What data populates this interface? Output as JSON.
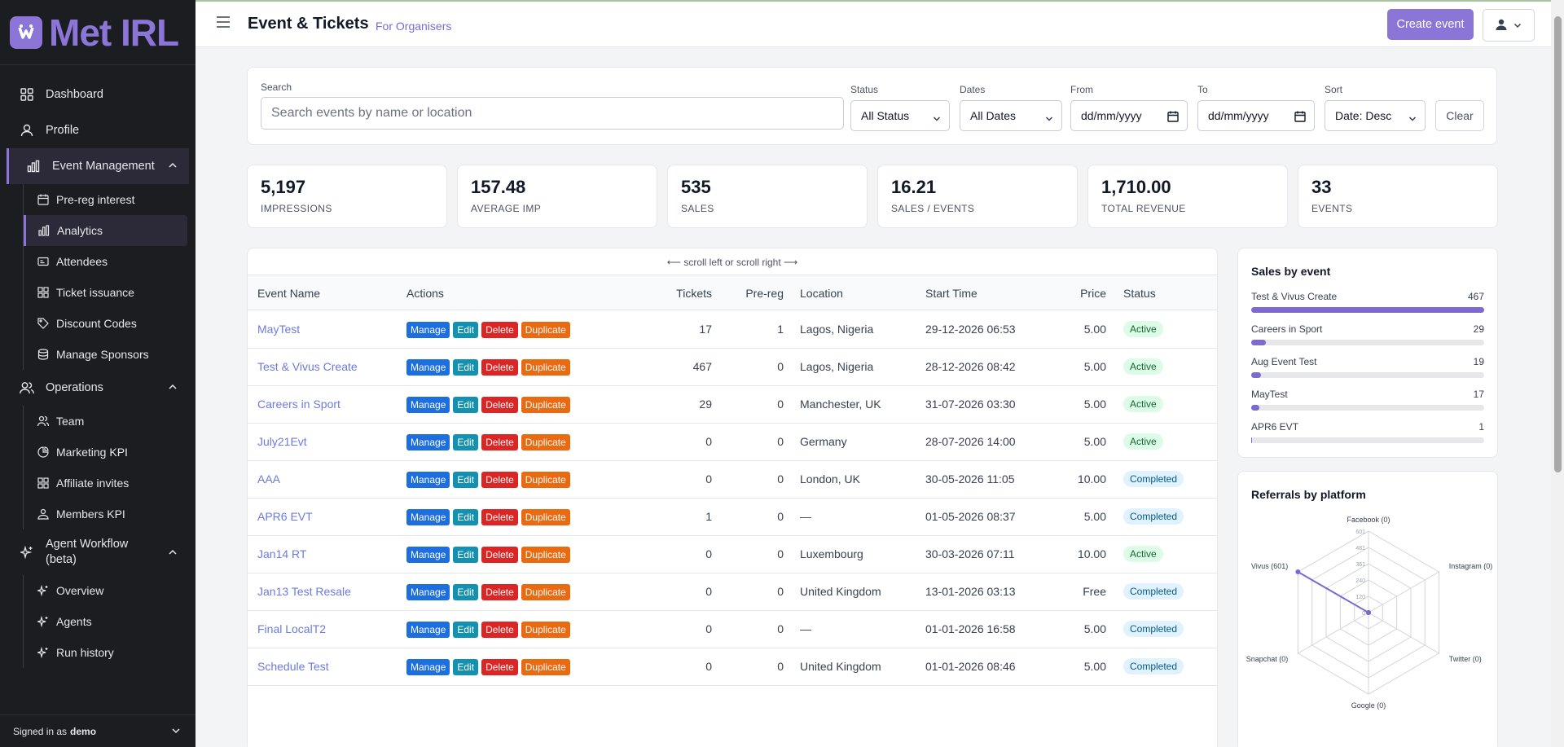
{
  "brand": {
    "name": "Met IRL",
    "color": "#8b75d7"
  },
  "sidebar": {
    "items": [
      {
        "label": "Dashboard",
        "icon": "grid-icon"
      },
      {
        "label": "Profile",
        "icon": "user-icon"
      },
      {
        "label": "Event Management",
        "icon": "bar-chart-icon",
        "expanded": true,
        "children": [
          {
            "label": "Pre-reg interest",
            "icon": "calendar-icon"
          },
          {
            "label": "Analytics",
            "icon": "analytics-icon",
            "active": true
          },
          {
            "label": "Attendees",
            "icon": "id-card-icon"
          },
          {
            "label": "Ticket issuance",
            "icon": "grid-icon"
          },
          {
            "label": "Discount Codes",
            "icon": "tag-icon"
          },
          {
            "label": "Manage Sponsors",
            "icon": "database-icon"
          }
        ]
      },
      {
        "label": "Operations",
        "icon": "users-icon",
        "children": [
          {
            "label": "Team",
            "icon": "team-icon"
          },
          {
            "label": "Marketing KPI",
            "icon": "chart-pie-icon"
          },
          {
            "label": "Affiliate invites",
            "icon": "grid-icon"
          },
          {
            "label": "Members KPI",
            "icon": "members-icon"
          }
        ]
      },
      {
        "label": "Agent Workflow (beta)",
        "label_line1": "Agent Workflow",
        "label_line2": "(beta)",
        "icon": "sparkle-icon",
        "children": [
          {
            "label": "Overview",
            "icon": "sparkle-icon"
          },
          {
            "label": "Agents",
            "icon": "sparkle-icon"
          },
          {
            "label": "Run history",
            "icon": "sparkle-icon"
          }
        ]
      }
    ],
    "signed_in_prefix": "Signed in as",
    "signed_in_user": "demo"
  },
  "header": {
    "title": "Event & Tickets",
    "subtitle": "For Organisers",
    "create_button": "Create event"
  },
  "filters": {
    "search_label": "Search",
    "search_placeholder": "Search events by name or location",
    "status_label": "Status",
    "status_value": "All Status",
    "dates_label": "Dates",
    "dates_value": "All Dates",
    "from_label": "From",
    "from_value": "dd/mm/yyyy",
    "to_label": "To",
    "to_value": "dd/mm/yyyy",
    "sort_label": "Sort",
    "sort_value": "Date: Desc",
    "clear_button": "Clear"
  },
  "stats": [
    {
      "value": "5,197",
      "label": "IMPRESSIONS"
    },
    {
      "value": "157.48",
      "label": "AVERAGE IMP"
    },
    {
      "value": "535",
      "label": "SALES"
    },
    {
      "value": "16.21",
      "label": "SALES / EVENTS"
    },
    {
      "value": "1,710.00",
      "label": "TOTAL REVENUE"
    },
    {
      "value": "33",
      "label": "EVENTS"
    }
  ],
  "table": {
    "scroll_hint": "⟵ scroll left or scroll right ⟶",
    "headers": [
      "Event Name",
      "Actions",
      "Tickets",
      "Pre-reg",
      "Location",
      "Start Time",
      "Price",
      "Status"
    ],
    "action_labels": [
      "Manage",
      "Edit",
      "Delete",
      "Duplicate"
    ],
    "rows": [
      {
        "name": "MayTest",
        "tickets": "17",
        "prereg": "1",
        "location": "Lagos, Nigeria",
        "start": "29-12-2026 06:53",
        "price": "5.00",
        "status": "Active"
      },
      {
        "name": "Test & Vivus Create",
        "tickets": "467",
        "prereg": "0",
        "location": "Lagos, Nigeria",
        "start": "28-12-2026 08:42",
        "price": "5.00",
        "status": "Active"
      },
      {
        "name": "Careers in Sport",
        "tickets": "29",
        "prereg": "0",
        "location": "Manchester, UK",
        "start": "31-07-2026 03:30",
        "price": "5.00",
        "status": "Active"
      },
      {
        "name": "July21Evt",
        "tickets": "0",
        "prereg": "0",
        "location": "Germany",
        "start": "28-07-2026 14:00",
        "price": "5.00",
        "status": "Active"
      },
      {
        "name": "AAA",
        "tickets": "0",
        "prereg": "0",
        "location": "London, UK",
        "start": "30-05-2026 11:05",
        "price": "10.00",
        "status": "Completed"
      },
      {
        "name": "APR6 EVT",
        "tickets": "1",
        "prereg": "0",
        "location": "—",
        "start": "01-05-2026 08:37",
        "price": "5.00",
        "status": "Completed"
      },
      {
        "name": "Jan14 RT",
        "tickets": "0",
        "prereg": "0",
        "location": "Luxembourg",
        "start": "30-03-2026 07:11",
        "price": "10.00",
        "status": "Active"
      },
      {
        "name": "Jan13 Test Resale",
        "tickets": "0",
        "prereg": "0",
        "location": "United Kingdom",
        "start": "13-01-2026 03:13",
        "price": "Free",
        "status": "Completed"
      },
      {
        "name": "Final LocalT2",
        "tickets": "0",
        "prereg": "0",
        "location": "—",
        "start": "01-01-2026 16:58",
        "price": "5.00",
        "status": "Completed"
      },
      {
        "name": "Schedule Test",
        "tickets": "0",
        "prereg": "0",
        "location": "United Kingdom",
        "start": "01-01-2026 08:46",
        "price": "5.00",
        "status": "Completed"
      }
    ]
  },
  "sales_by_event": {
    "title": "Sales by event",
    "max": 467,
    "items": [
      {
        "name": "Test & Vivus Create",
        "count": 467
      },
      {
        "name": "Careers in Sport",
        "count": 29
      },
      {
        "name": "Aug Event Test",
        "count": 19
      },
      {
        "name": "MayTest",
        "count": 17
      },
      {
        "name": "APR6 EVT",
        "count": 1
      }
    ]
  },
  "referrals": {
    "title": "Referrals by platform",
    "chart_data": {
      "type": "radar",
      "axes": [
        "Facebook (0)",
        "Instagram (0)",
        "Twitter (0)",
        "Google (0)",
        "Snapchat (0)",
        "Vivus (601)"
      ],
      "values": [
        0,
        0,
        0,
        0,
        0,
        601
      ],
      "ticks": [
        "601",
        "481",
        "361",
        "240",
        "120",
        "0"
      ],
      "max": 601,
      "color": "#7c6ad1"
    }
  }
}
